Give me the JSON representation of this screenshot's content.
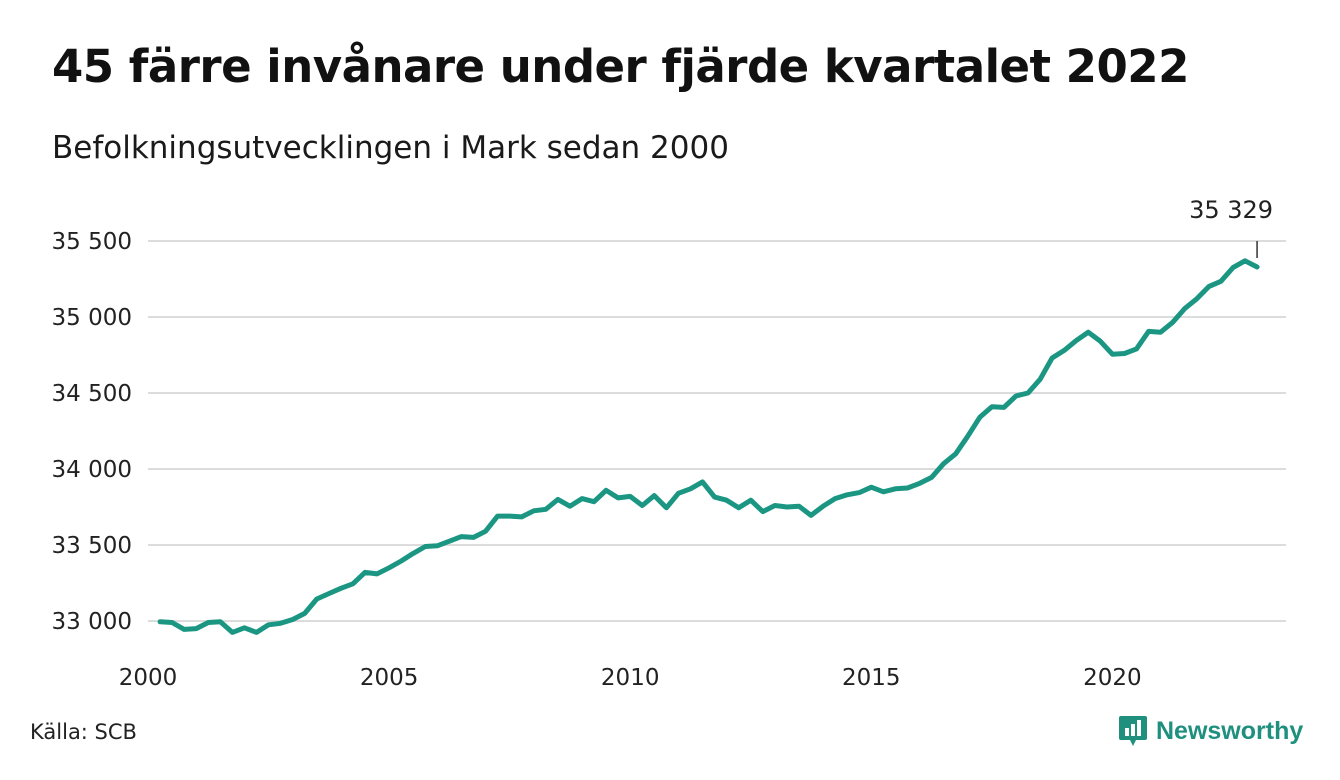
{
  "header": {
    "title": "45 färre invånare under fjärde kvartalet 2022",
    "subtitle": "Befolkningsutvecklingen i Mark sedan 2000"
  },
  "footer": {
    "source": "Källa: SCB",
    "brand": "Newsworthy",
    "brand_color": "#1f8f7e"
  },
  "chart_data": {
    "type": "line",
    "title": "45 färre invånare under fjärde kvartalet 2022",
    "subtitle": "Befolkningsutvecklingen i Mark sedan 2000",
    "xlabel": "",
    "ylabel": "",
    "line_color": "#1a9683",
    "grid": true,
    "xlim": [
      2000,
      2023.6
    ],
    "ylim": [
      32900,
      35600
    ],
    "x_ticks": [
      2000,
      2005,
      2010,
      2015,
      2020
    ],
    "x_tick_labels": [
      "2000",
      "2005",
      "2010",
      "2015",
      "2020"
    ],
    "y_ticks": [
      33000,
      33500,
      34000,
      34500,
      35000,
      35500
    ],
    "y_tick_labels": [
      "33 000",
      "33 500",
      "34 000",
      "34 500",
      "35 000",
      "35 500"
    ],
    "last_value_label": "35 329",
    "series": [
      {
        "x": [
          2000.25,
          2000.5,
          2000.75,
          2001.0,
          2001.25,
          2001.5,
          2001.75,
          2002.0,
          2002.25,
          2002.5,
          2002.75,
          2003.0,
          2003.25,
          2003.5,
          2003.75,
          2004.0,
          2004.25,
          2004.5,
          2004.75,
          2005.0,
          2005.25,
          2005.5,
          2005.75,
          2006.0,
          2006.25,
          2006.5,
          2006.75,
          2007.0,
          2007.25,
          2007.5,
          2007.75,
          2008.0,
          2008.25,
          2008.5,
          2008.75,
          2009.0,
          2009.25,
          2009.5,
          2009.75,
          2010.0,
          2010.25,
          2010.5,
          2010.75,
          2011.0,
          2011.25,
          2011.5,
          2011.75,
          2012.0,
          2012.25,
          2012.5,
          2012.75,
          2013.0,
          2013.25,
          2013.5,
          2013.75,
          2014.0,
          2014.25,
          2014.5,
          2014.75,
          2015.0,
          2015.25,
          2015.5,
          2015.75,
          2016.0,
          2016.25,
          2016.5,
          2016.75,
          2017.0,
          2017.25,
          2017.5,
          2017.75,
          2018.0,
          2018.25,
          2018.5,
          2018.75,
          2019.0,
          2019.25,
          2019.5,
          2019.75,
          2020.0,
          2020.25,
          2020.5,
          2020.75,
          2021.0,
          2021.25,
          2021.5,
          2021.75,
          2022.0,
          2022.25,
          2022.5,
          2022.75,
          2023.0
        ],
        "values": [
          32995,
          32990,
          32945,
          32950,
          32990,
          32995,
          32925,
          32955,
          32925,
          32975,
          32985,
          33010,
          33050,
          33145,
          33180,
          33215,
          33245,
          33320,
          33310,
          33350,
          33395,
          33445,
          33490,
          33495,
          33525,
          33555,
          33550,
          33590,
          33690,
          33690,
          33685,
          33725,
          33735,
          33800,
          33755,
          33805,
          33785,
          33860,
          33810,
          33820,
          33760,
          33825,
          33745,
          33840,
          33870,
          33915,
          33815,
          33795,
          33745,
          33795,
          33720,
          33760,
          33750,
          33755,
          33695,
          33755,
          33805,
          33830,
          33845,
          33880,
          33850,
          33870,
          33875,
          33905,
          33945,
          34035,
          34100,
          34215,
          34340,
          34410,
          34405,
          34480,
          34500,
          34590,
          34730,
          34780,
          34845,
          34900,
          34840,
          34755,
          34760,
          34790,
          34905,
          34900,
          34965,
          35055,
          35120,
          35200,
          35235,
          35325,
          35370,
          35329
        ]
      }
    ]
  }
}
